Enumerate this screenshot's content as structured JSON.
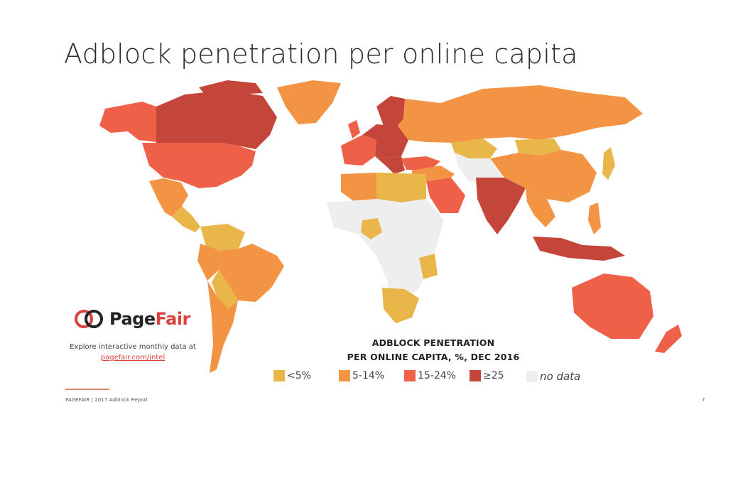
{
  "title": "Adblock penetration per online capita",
  "legend": {
    "title_line1": "ADBLOCK PENETRATION",
    "title_line2": "PER ONLINE CAPITA, %, DEC 2016",
    "items": [
      {
        "label": "<5%",
        "color": "#e9b64a"
      },
      {
        "label": "5-14%",
        "color": "#f39344"
      },
      {
        "label": "15-24%",
        "color": "#ef6048"
      },
      {
        "label": "≥25",
        "color": "#c4463a"
      },
      {
        "label": "no data",
        "color": "#eeeeee"
      }
    ]
  },
  "branding": {
    "logo_page": "Page",
    "logo_fair": "Fair",
    "explore_text": "Explore interactive monthly data at",
    "link_text": "pagefair.com/intel"
  },
  "footer": {
    "text": "PAGEFAIR | 2017 Adblock Report",
    "page_number": "7"
  },
  "map_data": {
    "regions": [
      {
        "region": "Canada",
        "category": "≥25"
      },
      {
        "region": "Alaska",
        "category": "15-24%"
      },
      {
        "region": "United States",
        "category": "15-24%"
      },
      {
        "region": "Greenland",
        "category": "5-14%"
      },
      {
        "region": "Mexico",
        "category": "5-14%"
      },
      {
        "region": "Central America",
        "category": "<5%"
      },
      {
        "region": "Northern South America",
        "category": "<5%"
      },
      {
        "region": "Brazil",
        "category": "5-14%"
      },
      {
        "region": "Peru",
        "category": "5-14%"
      },
      {
        "region": "Bolivia / Paraguay",
        "category": "<5%"
      },
      {
        "region": "Argentina / Chile",
        "category": "5-14%"
      },
      {
        "region": "Scandinavia",
        "category": "≥25"
      },
      {
        "region": "Western Europe",
        "category": "15-24%"
      },
      {
        "region": "Central / Eastern Europe",
        "category": "≥25"
      },
      {
        "region": "Russia",
        "category": "5-14%"
      },
      {
        "region": "Kazakhstan",
        "category": "<5%"
      },
      {
        "region": "Mongolia",
        "category": "<5%"
      },
      {
        "region": "China",
        "category": "5-14%"
      },
      {
        "region": "Central Asia / Iran",
        "category": "no data"
      },
      {
        "region": "Turkey",
        "category": "15-24%"
      },
      {
        "region": "Saudi Arabia",
        "category": "15-24%"
      },
      {
        "region": "North Africa",
        "category": "5-14%"
      },
      {
        "region": "Egypt / Libya",
        "category": "<5%"
      },
      {
        "region": "Sub-Saharan Africa",
        "category": "no data"
      },
      {
        "region": "Nigeria",
        "category": "<5%"
      },
      {
        "region": "Kenya / Tanzania",
        "category": "<5%"
      },
      {
        "region": "South Africa",
        "category": "<5%"
      },
      {
        "region": "India",
        "category": "≥25"
      },
      {
        "region": "Southeast Asia",
        "category": "5-14%"
      },
      {
        "region": "Indonesia",
        "category": "≥25"
      },
      {
        "region": "Philippines",
        "category": "5-14%"
      },
      {
        "region": "Japan",
        "category": "<5%"
      },
      {
        "region": "Australia",
        "category": "15-24%"
      },
      {
        "region": "New Zealand",
        "category": "15-24%"
      }
    ]
  }
}
